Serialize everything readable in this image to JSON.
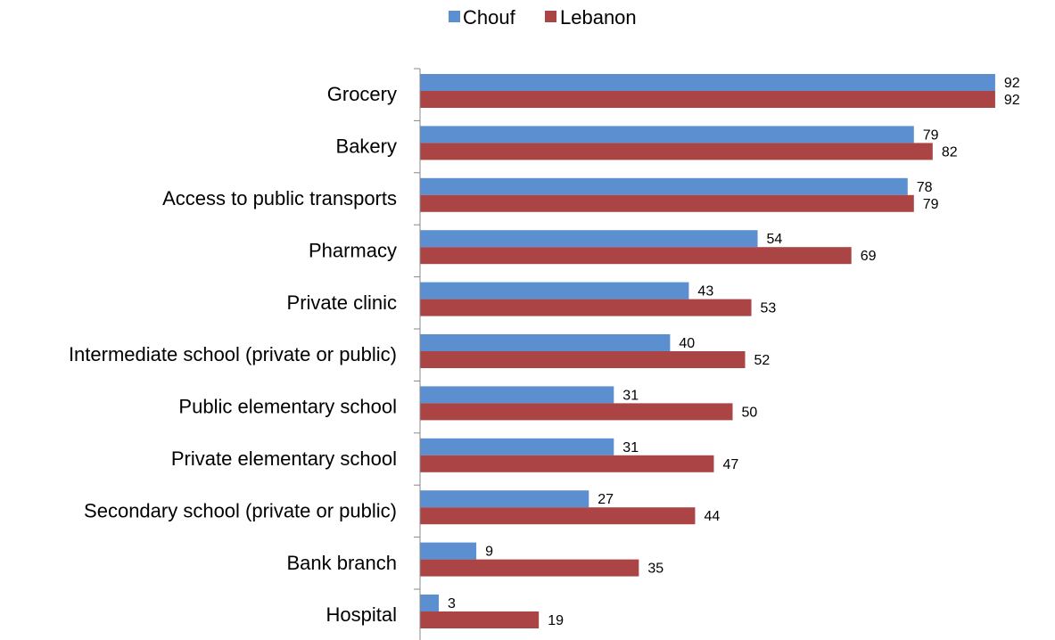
{
  "chart_data": {
    "type": "bar",
    "orientation": "horizontal",
    "title": "",
    "xlabel": "",
    "ylabel": "",
    "categories": [
      "Grocery",
      "Bakery",
      "Access to public transports",
      "Pharmacy",
      "Private clinic",
      "Intermediate school (private or public)",
      "Public elementary school",
      "Private elementary school",
      "Secondary school (private or public)",
      "Bank branch",
      "Hospital"
    ],
    "series": [
      {
        "name": "Chouf",
        "color": "#5B8FCF",
        "values": [
          92,
          79,
          78,
          54,
          43,
          40,
          31,
          31,
          27,
          9,
          3
        ]
      },
      {
        "name": "Lebanon",
        "color": "#AB4444",
        "values": [
          92,
          82,
          79,
          69,
          53,
          52,
          50,
          47,
          44,
          35,
          19
        ]
      }
    ],
    "xlim": [
      0,
      100
    ],
    "grid": false,
    "legend_position": "top-center",
    "data_labels": true
  }
}
